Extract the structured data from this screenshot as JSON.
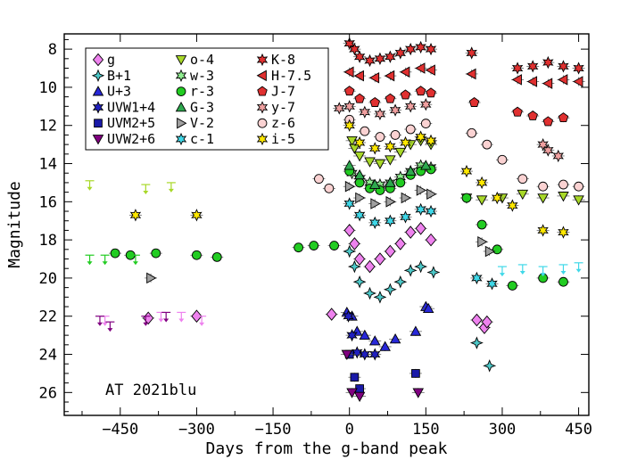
{
  "chart_data": {
    "type": "scatter",
    "title": "",
    "xlabel": "Days from the g-band peak",
    "ylabel": "Magnitude",
    "annotation": "AT 2021blu",
    "xlim": [
      -560,
      470
    ],
    "ylim": [
      27.2,
      7.2
    ],
    "y_inverted": true,
    "xticks": [
      -450,
      -300,
      -150,
      0,
      150,
      300,
      450
    ],
    "xtick_labels": [
      "−450",
      "−300",
      "−150",
      "0",
      "150",
      "300",
      "450"
    ],
    "yticks": [
      8,
      10,
      12,
      14,
      16,
      18,
      20,
      22,
      24,
      26
    ],
    "ytick_labels": [
      "8",
      "10",
      "12",
      "14",
      "16",
      "18",
      "20",
      "22",
      "24",
      "26"
    ],
    "legend_position": "top-left",
    "series": [
      {
        "name": "g",
        "color": "#ee82ee",
        "marker": "diamond",
        "points": [
          [
            -395,
            22.1
          ],
          [
            -300,
            22.0
          ],
          [
            -35,
            21.9
          ],
          [
            0,
            17.5
          ],
          [
            10,
            18.2
          ],
          [
            20,
            19.0
          ],
          [
            40,
            19.4
          ],
          [
            60,
            19.0
          ],
          [
            80,
            18.6
          ],
          [
            100,
            18.2
          ],
          [
            120,
            17.6
          ],
          [
            140,
            17.4
          ],
          [
            160,
            18.0
          ],
          [
            250,
            22.2
          ],
          [
            265,
            22.6
          ],
          [
            270,
            22.3
          ]
        ],
        "upper_limits": [
          [
            -480,
            22.0
          ],
          [
            -370,
            21.8
          ],
          [
            -330,
            21.8
          ],
          [
            -290,
            22.0
          ]
        ]
      },
      {
        "name": "B+1",
        "color": "#4dc8c8",
        "marker": "cross",
        "points": [
          [
            0,
            18.6
          ],
          [
            10,
            19.4
          ],
          [
            20,
            20.2
          ],
          [
            40,
            20.8
          ],
          [
            60,
            21.0
          ],
          [
            80,
            20.6
          ],
          [
            100,
            20.2
          ],
          [
            120,
            19.6
          ],
          [
            140,
            19.4
          ],
          [
            165,
            19.7
          ],
          [
            250,
            23.4
          ],
          [
            275,
            24.6
          ]
        ],
        "upper_limits": []
      },
      {
        "name": "U+3",
        "color": "#2828d8",
        "marker": "triangle",
        "points": [
          [
            -5,
            21.8
          ],
          [
            5,
            22.0
          ],
          [
            15,
            22.8
          ],
          [
            30,
            23.0
          ],
          [
            50,
            23.3
          ],
          [
            70,
            23.6
          ],
          [
            90,
            23.2
          ],
          [
            130,
            22.8
          ],
          [
            150,
            21.5
          ],
          [
            155,
            21.6
          ]
        ],
        "upper_limits": []
      },
      {
        "name": "UVW1+4",
        "color": "#2020c0",
        "marker": "star",
        "points": [
          [
            -2,
            22.0
          ],
          [
            5,
            23.0
          ],
          [
            15,
            23.9
          ],
          [
            30,
            24.0
          ],
          [
            50,
            24.0
          ]
        ],
        "upper_limits": []
      },
      {
        "name": "UVM2+5",
        "color": "#1a1aa8",
        "marker": "square",
        "points": [
          [
            0,
            24.0
          ],
          [
            10,
            25.2
          ],
          [
            20,
            25.8
          ],
          [
            130,
            25.0
          ]
        ],
        "upper_limits": []
      },
      {
        "name": "UVW2+6",
        "color": "#800080",
        "marker": "triangle-down",
        "points": [
          [
            -5,
            24.0
          ],
          [
            5,
            26.0
          ],
          [
            20,
            26.2
          ],
          [
            135,
            26.0
          ]
        ],
        "upper_limits": [
          [
            -490,
            22.0
          ],
          [
            -470,
            22.3
          ],
          [
            -400,
            22.0
          ],
          [
            -360,
            21.8
          ]
        ]
      },
      {
        "name": "o-4",
        "color": "#a8d828",
        "marker": "triangle-down",
        "points": [
          [
            5,
            12.8
          ],
          [
            10,
            13.2
          ],
          [
            20,
            13.6
          ],
          [
            40,
            13.9
          ],
          [
            60,
            14.0
          ],
          [
            80,
            13.8
          ],
          [
            100,
            13.4
          ],
          [
            120,
            13.0
          ],
          [
            140,
            12.8
          ],
          [
            160,
            13.0
          ],
          [
            230,
            15.8
          ],
          [
            260,
            15.9
          ],
          [
            300,
            15.8
          ],
          [
            340,
            15.6
          ],
          [
            380,
            15.8
          ],
          [
            420,
            15.7
          ],
          [
            450,
            15.9
          ]
        ],
        "upper_limits": [
          [
            -400,
            15.1
          ],
          [
            -350,
            15.0
          ],
          [
            -510,
            14.9
          ]
        ]
      },
      {
        "name": "w-3",
        "color": "#90ee90",
        "marker": "star",
        "points": [
          [
            5,
            14.5
          ],
          [
            20,
            14.8
          ],
          [
            40,
            15.0
          ],
          [
            60,
            15.1
          ],
          [
            80,
            15.0
          ],
          [
            100,
            14.7
          ],
          [
            120,
            14.4
          ],
          [
            140,
            14.1
          ],
          [
            160,
            14.2
          ]
        ],
        "upper_limits": []
      },
      {
        "name": "r-3",
        "color": "#22cc22",
        "marker": "circle",
        "points": [
          [
            -460,
            18.7
          ],
          [
            -430,
            18.8
          ],
          [
            -380,
            18.7
          ],
          [
            -300,
            18.8
          ],
          [
            -260,
            18.9
          ],
          [
            -100,
            18.4
          ],
          [
            -70,
            18.3
          ],
          [
            -30,
            18.3
          ],
          [
            0,
            14.4
          ],
          [
            20,
            15.0
          ],
          [
            40,
            15.3
          ],
          [
            60,
            15.4
          ],
          [
            80,
            15.3
          ],
          [
            100,
            15.0
          ],
          [
            120,
            14.6
          ],
          [
            140,
            14.4
          ],
          [
            160,
            14.3
          ],
          [
            230,
            15.8
          ],
          [
            260,
            17.2
          ],
          [
            290,
            18.5
          ],
          [
            320,
            20.4
          ],
          [
            380,
            20.0
          ],
          [
            420,
            20.2
          ]
        ],
        "upper_limits": [
          [
            -510,
            18.8
          ],
          [
            -480,
            18.8
          ],
          [
            -420,
            18.8
          ]
        ]
      },
      {
        "name": "G-3",
        "color": "#2ea84e",
        "marker": "triangle",
        "points": [
          [
            0,
            14.1
          ],
          [
            20,
            14.6
          ],
          [
            50,
            15.1
          ],
          [
            80,
            15.0
          ],
          [
            120,
            14.4
          ],
          [
            150,
            14.1
          ]
        ],
        "upper_limits": []
      },
      {
        "name": "V-2",
        "color": "#a0a0a0",
        "marker": "triangle-right",
        "points": [
          [
            -390,
            20.0
          ],
          [
            0,
            15.2
          ],
          [
            20,
            15.8
          ],
          [
            50,
            16.1
          ],
          [
            80,
            16.0
          ],
          [
            110,
            15.8
          ],
          [
            140,
            15.4
          ],
          [
            160,
            15.6
          ],
          [
            260,
            18.1
          ],
          [
            275,
            18.6
          ]
        ],
        "upper_limits": []
      },
      {
        "name": "c-1",
        "color": "#40d8e8",
        "marker": "star",
        "points": [
          [
            0,
            16.1
          ],
          [
            20,
            16.7
          ],
          [
            50,
            17.1
          ],
          [
            80,
            17.0
          ],
          [
            110,
            16.8
          ],
          [
            140,
            16.4
          ],
          [
            160,
            16.5
          ],
          [
            250,
            20.0
          ],
          [
            280,
            20.3
          ]
        ],
        "upper_limits": [
          [
            300,
            19.4
          ],
          [
            340,
            19.3
          ],
          [
            380,
            19.4
          ],
          [
            420,
            19.3
          ],
          [
            450,
            19.2
          ]
        ]
      },
      {
        "name": "K-8",
        "color": "#e03030",
        "marker": "star",
        "points": [
          [
            0,
            7.7
          ],
          [
            10,
            8.0
          ],
          [
            20,
            8.4
          ],
          [
            40,
            8.6
          ],
          [
            60,
            8.5
          ],
          [
            80,
            8.4
          ],
          [
            100,
            8.2
          ],
          [
            120,
            8.0
          ],
          [
            140,
            7.9
          ],
          [
            160,
            8.0
          ],
          [
            240,
            8.2
          ],
          [
            330,
            9.0
          ],
          [
            360,
            8.9
          ],
          [
            390,
            8.7
          ],
          [
            420,
            8.9
          ],
          [
            450,
            9.0
          ]
        ],
        "upper_limits": []
      },
      {
        "name": "H-7.5",
        "color": "#e03030",
        "marker": "triangle-left",
        "points": [
          [
            0,
            9.2
          ],
          [
            20,
            9.4
          ],
          [
            50,
            9.5
          ],
          [
            80,
            9.4
          ],
          [
            110,
            9.2
          ],
          [
            140,
            9.0
          ],
          [
            160,
            9.1
          ],
          [
            240,
            9.3
          ],
          [
            330,
            9.6
          ],
          [
            360,
            9.7
          ],
          [
            390,
            9.8
          ],
          [
            420,
            9.6
          ],
          [
            450,
            9.7
          ]
        ],
        "upper_limits": []
      },
      {
        "name": "J-7",
        "color": "#e03030",
        "marker": "pentagon",
        "points": [
          [
            0,
            10.2
          ],
          [
            20,
            10.6
          ],
          [
            50,
            10.8
          ],
          [
            80,
            10.6
          ],
          [
            110,
            10.4
          ],
          [
            140,
            10.2
          ],
          [
            160,
            10.3
          ],
          [
            245,
            10.8
          ],
          [
            330,
            11.3
          ],
          [
            360,
            11.5
          ],
          [
            390,
            11.8
          ],
          [
            420,
            11.6
          ]
        ],
        "upper_limits": []
      },
      {
        "name": "y-7",
        "color": "#f0a0a0",
        "marker": "star",
        "points": [
          [
            -20,
            11.1
          ],
          [
            0,
            11.0
          ],
          [
            30,
            11.3
          ],
          [
            60,
            11.4
          ],
          [
            90,
            11.2
          ],
          [
            120,
            11.0
          ],
          [
            150,
            10.9
          ],
          [
            390,
            13.3
          ],
          [
            410,
            13.6
          ],
          [
            380,
            13.0
          ]
        ],
        "upper_limits": []
      },
      {
        "name": "z-6",
        "color": "#fad2d2",
        "marker": "circle",
        "points": [
          [
            -60,
            14.8
          ],
          [
            -40,
            15.3
          ],
          [
            0,
            11.7
          ],
          [
            30,
            12.3
          ],
          [
            60,
            12.6
          ],
          [
            90,
            12.5
          ],
          [
            120,
            12.2
          ],
          [
            150,
            11.9
          ],
          [
            240,
            12.4
          ],
          [
            270,
            13.0
          ],
          [
            300,
            13.8
          ],
          [
            340,
            14.8
          ],
          [
            380,
            15.2
          ],
          [
            420,
            15.1
          ],
          [
            450,
            15.2
          ]
        ],
        "upper_limits": []
      },
      {
        "name": "i-5",
        "color": "#ffe800",
        "marker": "star",
        "points": [
          [
            -420,
            16.7
          ],
          [
            -300,
            16.7
          ],
          [
            0,
            12.0
          ],
          [
            20,
            12.9
          ],
          [
            50,
            13.2
          ],
          [
            80,
            13.1
          ],
          [
            110,
            12.9
          ],
          [
            140,
            12.6
          ],
          [
            160,
            12.8
          ],
          [
            230,
            14.4
          ],
          [
            260,
            15.0
          ],
          [
            290,
            15.8
          ],
          [
            320,
            16.2
          ],
          [
            380,
            17.5
          ],
          [
            420,
            17.6
          ]
        ],
        "upper_limits": []
      }
    ]
  }
}
